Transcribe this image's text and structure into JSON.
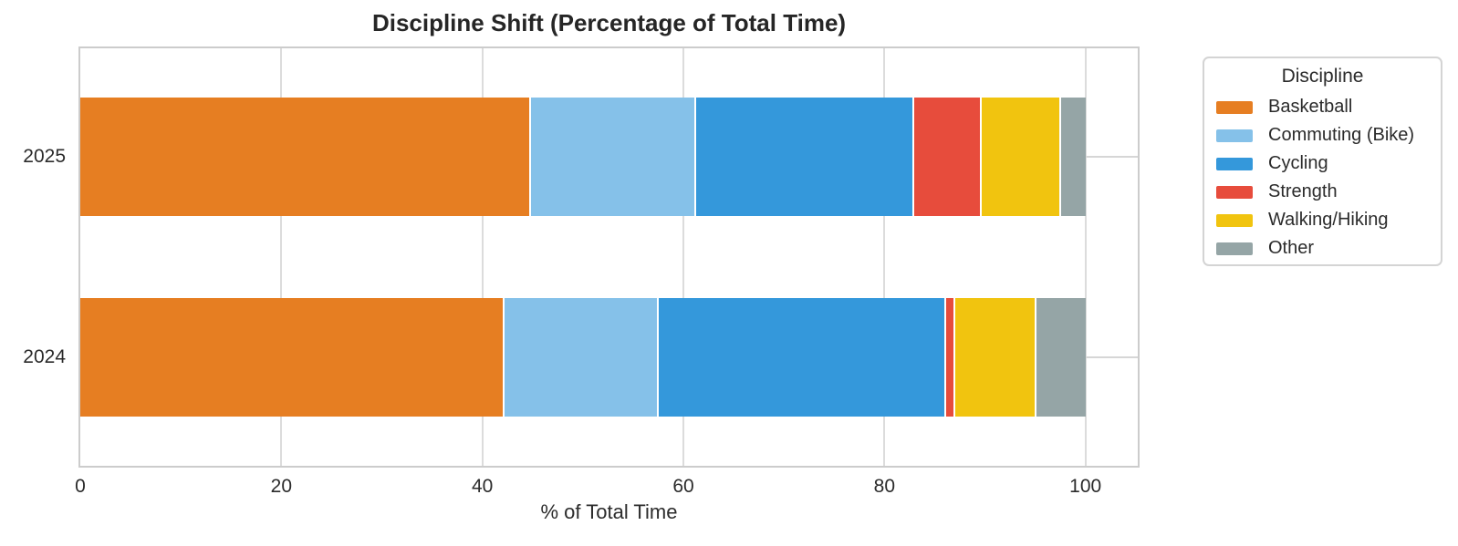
{
  "title": "Discipline Shift (Percentage of Total Time)",
  "chart_data": {
    "type": "bar",
    "orientation": "horizontal",
    "stacked": true,
    "title": "Discipline Shift (Percentage of Total Time)",
    "xlabel": "% of Total Time",
    "ylabel": "",
    "categories": [
      "2025",
      "2024"
    ],
    "series": [
      {
        "name": "Basketball",
        "color": "#E67E22",
        "values": [
          44.7,
          42.0
        ]
      },
      {
        "name": "Commuting (Bike)",
        "color": "#85C1E9",
        "values": [
          16.4,
          15.4
        ]
      },
      {
        "name": "Cycling",
        "color": "#3498DB",
        "values": [
          21.7,
          28.6
        ]
      },
      {
        "name": "Strength",
        "color": "#E74C3C",
        "values": [
          6.7,
          0.9
        ]
      },
      {
        "name": "Walking/Hiking",
        "color": "#F1C40F",
        "values": [
          7.9,
          8.0
        ]
      },
      {
        "name": "Other",
        "color": "#95A5A6",
        "values": [
          2.6,
          5.1
        ]
      }
    ],
    "x_ticks": [
      0,
      20,
      40,
      60,
      80,
      100
    ],
    "xlim": [
      0,
      105.2
    ],
    "grid": true,
    "legend": {
      "title": "Discipline",
      "position": "right"
    },
    "colors": {
      "gridline": "#dcdcdc",
      "spine": "#cccccc",
      "text": "#2b2b2b"
    }
  }
}
